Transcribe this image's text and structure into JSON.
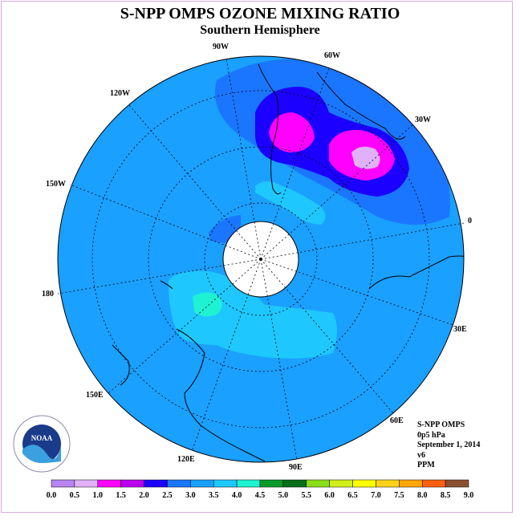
{
  "title": "S-NPP OMPS OZONE MIXING RATIO",
  "subtitle": "Southern Hemisphere",
  "longitude_labels": [
    "90W",
    "60W",
    "30W",
    "0",
    "30E",
    "60E",
    "90E",
    "120E",
    "150E",
    "180",
    "150W",
    "120W"
  ],
  "info": {
    "instrument": "S-NPP OMPS",
    "level": "0p5 hPa",
    "date": "September 1, 2014",
    "version": "v6",
    "units": "PPM"
  },
  "logo_text": "NOAA",
  "colorbar": {
    "ticks": [
      "0.0",
      "0.5",
      "1.0",
      "1.5",
      "2.0",
      "2.5",
      "3.0",
      "3.5",
      "4.0",
      "4.5",
      "5.0",
      "5.5",
      "6.0",
      "6.5",
      "7.0",
      "7.5",
      "8.0",
      "8.5",
      "9.0"
    ],
    "colors": [
      "#b784f2",
      "#e0b0f8",
      "#ff00ff",
      "#bb00ee",
      "#1c00ff",
      "#1a76ff",
      "#1aa0ff",
      "#1ec8ff",
      "#1ef2d2",
      "#0a9a2a",
      "#0a6e1a",
      "#8add1a",
      "#d0ee1a",
      "#ffff00",
      "#ffd21a",
      "#ffa60a",
      "#ff6010",
      "#ff0000",
      "#8a5030"
    ]
  },
  "colors": {
    "background_ozone": "#1aa0ff",
    "pole_mask": "#ffffff",
    "frame": "#d8a8d8"
  }
}
